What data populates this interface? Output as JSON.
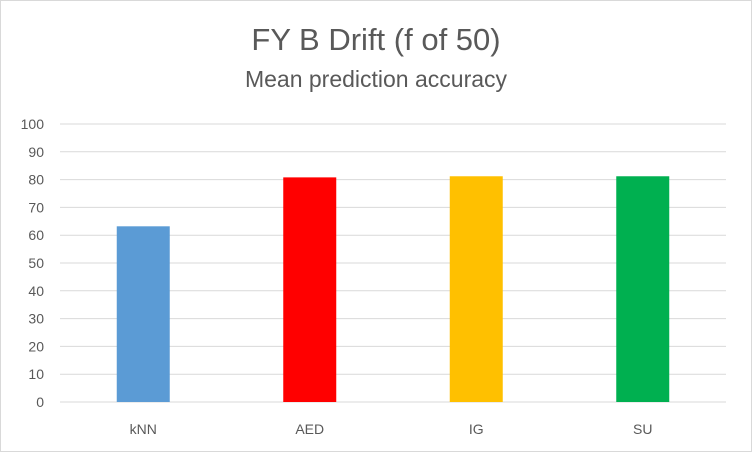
{
  "chart_data": {
    "type": "bar",
    "title": "FY B Drift (f of 50)",
    "subtitle": "Mean prediction accuracy",
    "xlabel": "",
    "ylabel": "",
    "categories": [
      "kNN",
      "AED",
      "IG",
      "SU"
    ],
    "values": [
      63.2,
      80.8,
      81.2,
      81.2
    ],
    "colors": [
      "#5b9bd5",
      "#ff0000",
      "#ffc000",
      "#00b050"
    ],
    "ylim": [
      0,
      100
    ],
    "yticks": [
      0,
      10,
      20,
      30,
      40,
      50,
      60,
      70,
      80,
      90,
      100
    ],
    "grid": true,
    "legend": "none"
  }
}
